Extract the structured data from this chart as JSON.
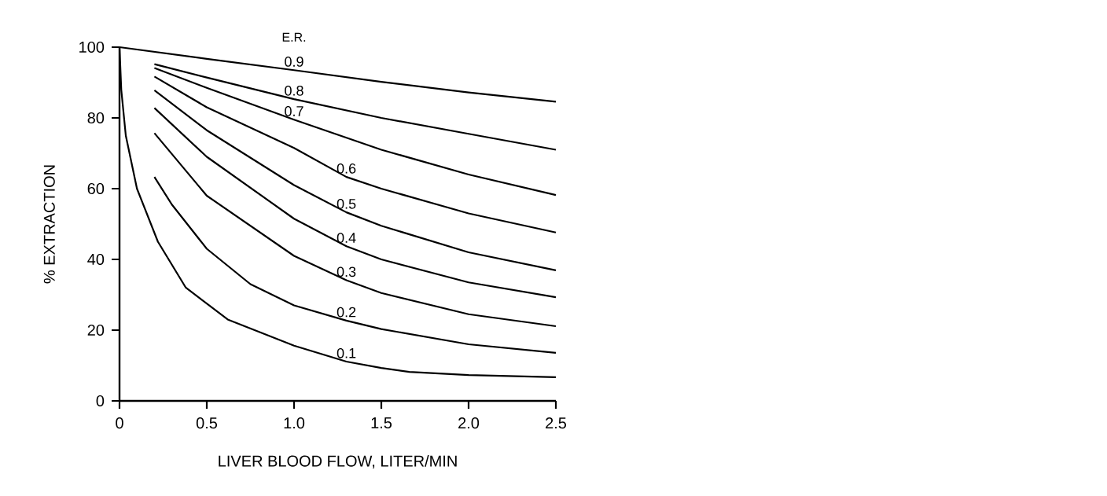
{
  "chart_data": {
    "type": "line",
    "xlabel": "LIVER BLOOD FLOW, LITER/MIN",
    "ylabel": "% EXTRACTION",
    "legend_title": "E.R.",
    "xlim": [
      0,
      2.5
    ],
    "ylim": [
      0,
      100
    ],
    "xticks": [
      0,
      0.5,
      {
        "value": 1,
        "label": "1.0"
      },
      1.5,
      {
        "value": 2,
        "label": "2.0"
      },
      2.5
    ],
    "yticks": [
      0,
      20,
      40,
      60,
      80,
      100
    ],
    "grid": false,
    "legend": false,
    "marker": "none",
    "line_style": "solid",
    "series": [
      {
        "name": "0.9",
        "color": "#000000",
        "x": [
          0,
          0.5,
          1.0,
          1.5,
          2.0,
          2.5
        ],
        "values": [
          100,
          96.7,
          93.5,
          90.2,
          87.2,
          84.6
        ]
      },
      {
        "name": "0.8",
        "color": "#000000",
        "x": [
          0.2,
          0.5,
          1.0,
          1.5,
          2.0,
          2.5
        ],
        "values": [
          95.2,
          91.4,
          85.3,
          80.0,
          75.5,
          71.0
        ]
      },
      {
        "name": "0.7",
        "color": "#000000",
        "x": [
          0.2,
          0.5,
          1.0,
          1.5,
          2.0,
          2.5
        ],
        "values": [
          94.1,
          88.5,
          79.5,
          71.0,
          64.0,
          58.2
        ]
      },
      {
        "name": "0.6",
        "color": "#000000",
        "x": [
          0.2,
          0.5,
          1.0,
          1.3,
          1.5,
          2.0,
          2.5
        ],
        "values": [
          91.7,
          83.0,
          71.5,
          63.3,
          60.0,
          53.0,
          47.6
        ]
      },
      {
        "name": "0.5",
        "color": "#000000",
        "x": [
          0.2,
          0.5,
          1.0,
          1.3,
          1.5,
          2.0,
          2.5
        ],
        "values": [
          87.8,
          76.5,
          61.0,
          53.3,
          49.5,
          42.0,
          36.9
        ]
      },
      {
        "name": "0.4",
        "color": "#000000",
        "x": [
          0.2,
          0.5,
          1.0,
          1.3,
          1.5,
          2.0,
          2.5
        ],
        "values": [
          82.8,
          69.0,
          51.5,
          43.7,
          40.0,
          33.5,
          29.3
        ]
      },
      {
        "name": "0.3",
        "color": "#000000",
        "x": [
          0.2,
          0.5,
          1.0,
          1.3,
          1.5,
          2.0,
          2.5
        ],
        "values": [
          75.7,
          58.0,
          41.0,
          34.1,
          30.5,
          24.5,
          21.1
        ]
      },
      {
        "name": "0.2",
        "color": "#000000",
        "x": [
          0.2,
          0.3,
          0.5,
          0.75,
          1.0,
          1.3,
          1.5,
          2.0,
          2.5
        ],
        "values": [
          63.3,
          55.5,
          43.0,
          33.0,
          27.0,
          22.7,
          20.3,
          16.0,
          13.6
        ]
      },
      {
        "name": "0.1",
        "color": "#000000",
        "x": [
          0,
          0.01,
          0.036,
          0.1,
          0.22,
          0.38,
          0.62,
          1.0,
          1.3,
          1.5,
          1.66,
          2.0,
          2.5
        ],
        "values": [
          100,
          88,
          75,
          60,
          45,
          32,
          23,
          15.6,
          11.1,
          9.3,
          8.2,
          7.3,
          6.7
        ]
      }
    ]
  }
}
